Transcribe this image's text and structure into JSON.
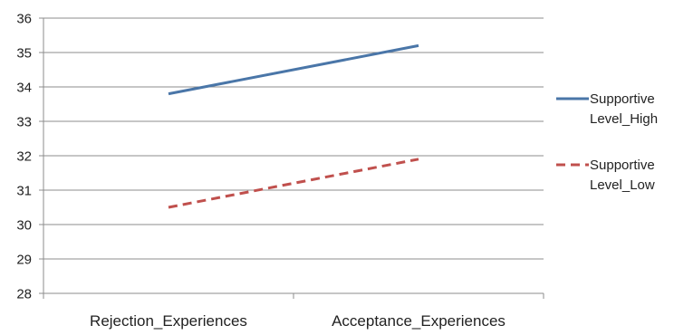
{
  "chart_data": {
    "type": "line",
    "categories": [
      "Rejection_Experiences",
      "Acceptance_Experiences"
    ],
    "series": [
      {
        "name": "Supportive Level_High",
        "legend_lines": [
          "Supportive",
          "Level_High"
        ],
        "values": [
          33.8,
          35.2
        ],
        "color": "#4a76a8",
        "dash": "solid"
      },
      {
        "name": "Supportive Level_Low",
        "legend_lines": [
          "Supportive",
          "Level_Low"
        ],
        "values": [
          30.5,
          31.9
        ],
        "color": "#c0504d",
        "dash": "dashed"
      }
    ],
    "ylim": [
      28,
      36
    ],
    "yticks": [
      "28",
      "29",
      "30",
      "31",
      "32",
      "33",
      "34",
      "35",
      "36"
    ],
    "grid": true,
    "legend_position": "right",
    "title": "",
    "xlabel": "",
    "ylabel": ""
  }
}
